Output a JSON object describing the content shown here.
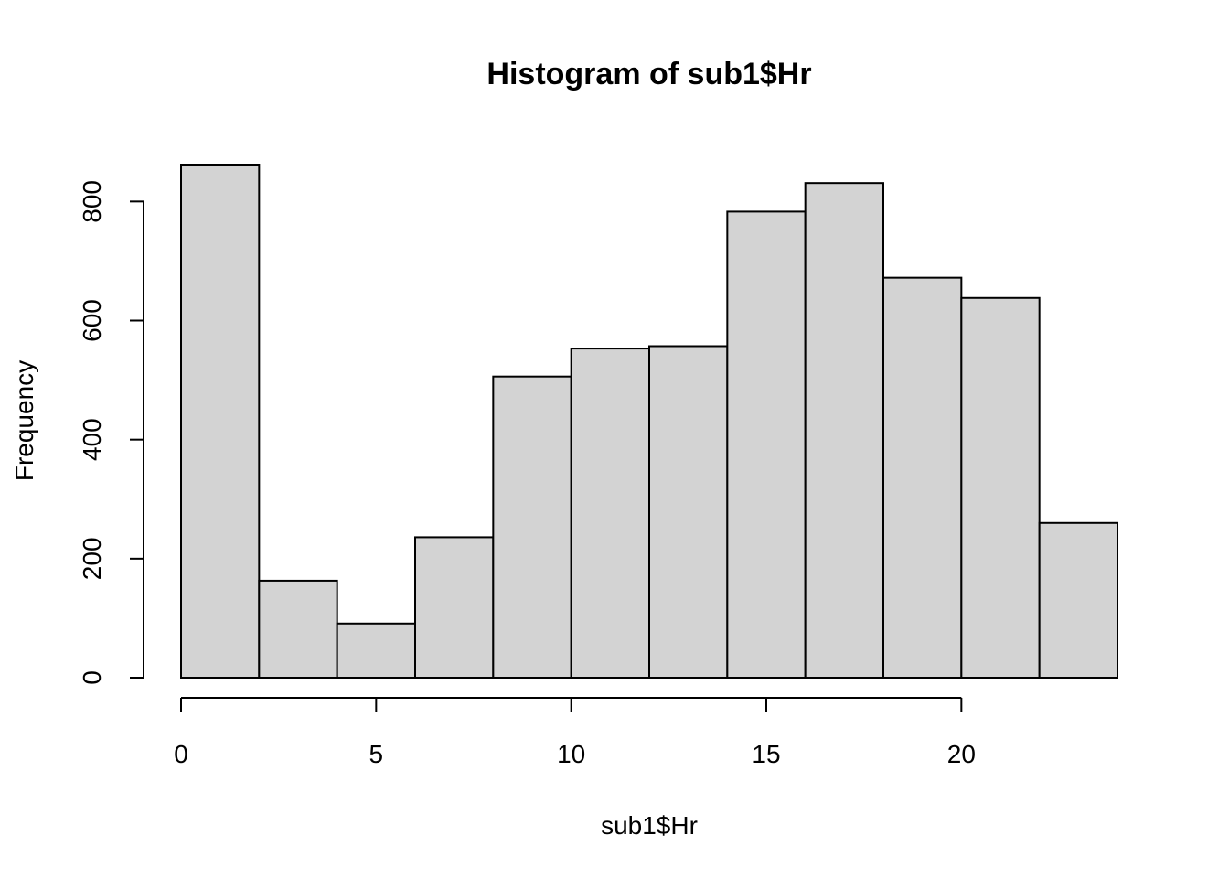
{
  "chart_data": {
    "type": "bar",
    "title": "Histogram of sub1$Hr",
    "xlabel": "sub1$Hr",
    "ylabel": "Frequency",
    "bins": [
      {
        "from": 0,
        "to": 2,
        "count": 862
      },
      {
        "from": 2,
        "to": 4,
        "count": 163
      },
      {
        "from": 4,
        "to": 6,
        "count": 91
      },
      {
        "from": 6,
        "to": 8,
        "count": 236
      },
      {
        "from": 8,
        "to": 10,
        "count": 506
      },
      {
        "from": 10,
        "to": 12,
        "count": 553
      },
      {
        "from": 12,
        "to": 14,
        "count": 557
      },
      {
        "from": 14,
        "to": 16,
        "count": 783
      },
      {
        "from": 16,
        "to": 18,
        "count": 831
      },
      {
        "from": 18,
        "to": 20,
        "count": 672
      },
      {
        "from": 20,
        "to": 22,
        "count": 638
      },
      {
        "from": 22,
        "to": 24,
        "count": 260
      }
    ],
    "xlim": [
      0,
      24
    ],
    "ylim": [
      0,
      862
    ],
    "x_ticks": [
      0,
      5,
      10,
      15,
      20
    ],
    "y_ticks": [
      0,
      200,
      400,
      600,
      800
    ],
    "bar_color": "#d3d3d3",
    "border_color": "#000000",
    "grid": false,
    "legend": "none"
  }
}
